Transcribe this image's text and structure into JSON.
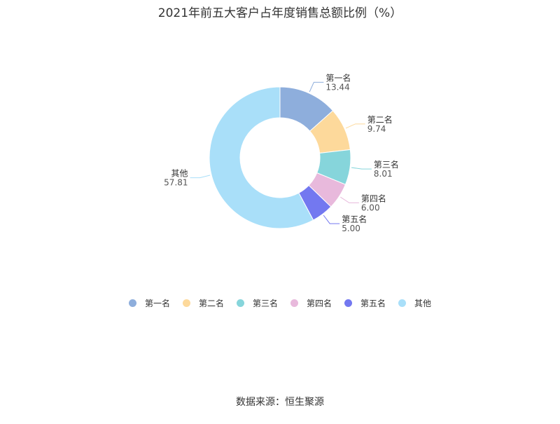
{
  "chart_data": {
    "type": "pie",
    "title": "2021年前五大客户占年度销售总额比例（%）",
    "categories": [
      "第一名",
      "第二名",
      "第三名",
      "第四名",
      "第五名",
      "其他"
    ],
    "values": [
      13.44,
      9.74,
      8.01,
      6.0,
      5.0,
      57.81
    ],
    "value_labels": [
      "13.44",
      "9.74",
      "8.01",
      "6.00",
      "5.00",
      "57.81"
    ],
    "colors": [
      "#8eaedc",
      "#fdd99b",
      "#86d5db",
      "#e8b9dc",
      "#7378f0",
      "#a9dff9"
    ],
    "legend_position": "bottom",
    "donut": true
  },
  "source": "数据来源：恒生聚源"
}
